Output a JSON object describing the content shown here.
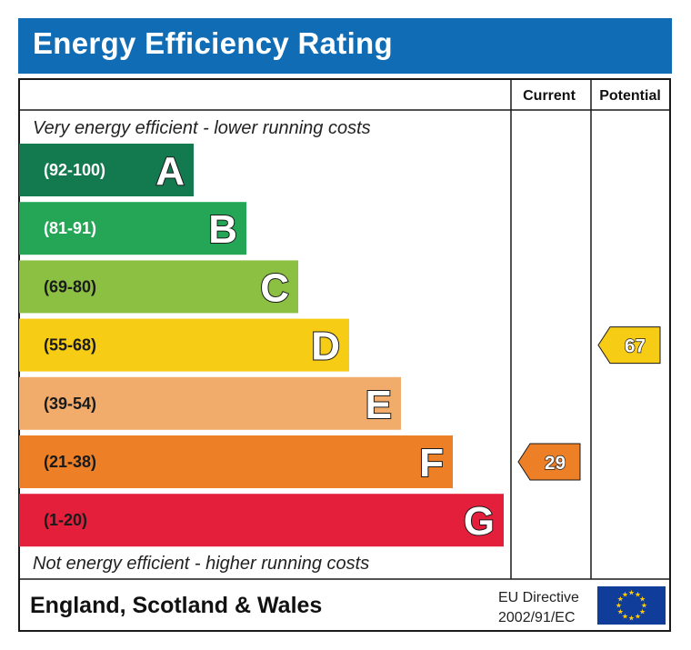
{
  "title": "Energy Efficiency Rating",
  "columns": {
    "current": "Current",
    "potential": "Potential"
  },
  "captions": {
    "top": "Very energy efficient - lower running costs",
    "bottom": "Not energy efficient - higher running costs"
  },
  "footer": {
    "region": "England, Scotland & Wales",
    "directive_line1": "EU Directive",
    "directive_line2": "2002/91/EC"
  },
  "chart_data": {
    "type": "bar",
    "categories": [
      "A",
      "B",
      "C",
      "D",
      "E",
      "F",
      "G"
    ],
    "ranges": [
      "(92-100)",
      "(81-91)",
      "(69-80)",
      "(55-68)",
      "(39-54)",
      "(21-38)",
      "(1-20)"
    ],
    "band_colors": [
      "#137a4f",
      "#25a657",
      "#8cc043",
      "#f6cc14",
      "#f1ab6a",
      "#ed8027",
      "#e31f3b"
    ],
    "range_text_colors": [
      "#ffffff",
      "#ffffff",
      "#1a1a1a",
      "#1a1a1a",
      "#1a1a1a",
      "#1a1a1a",
      "#1a1a1a"
    ],
    "current": {
      "value": 29,
      "band": "F"
    },
    "potential": {
      "value": 67,
      "band": "D"
    }
  }
}
